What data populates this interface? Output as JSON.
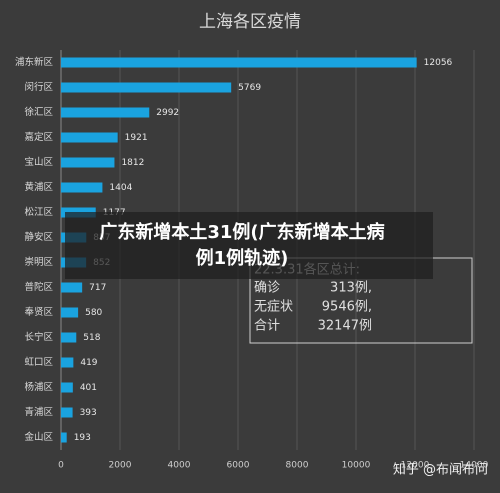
{
  "chart_data": {
    "type": "bar",
    "orientation": "horizontal",
    "title": "上海各区疫情",
    "categories": [
      "浦东新区",
      "闵行区",
      "徐汇区",
      "嘉定区",
      "宝山区",
      "黄浦区",
      "松江区",
      "静安区",
      "崇明区",
      "普陀区",
      "奉贤区",
      "长宁区",
      "虹口区",
      "杨浦区",
      "青浦区",
      "金山区"
    ],
    "values": [
      12056,
      5769,
      2992,
      1921,
      1812,
      1404,
      1177,
      857,
      852,
      717,
      580,
      518,
      419,
      401,
      393,
      193
    ],
    "color": "#1aa3e0",
    "xlim": [
      0,
      14000
    ],
    "xticks": [
      0,
      2000,
      4000,
      6000,
      8000,
      10000,
      12000,
      14000
    ],
    "grid": true,
    "annotation": {
      "title": "22.3.31各区总计:",
      "rows": [
        {
          "label": "确诊",
          "value": "313例,"
        },
        {
          "label": "无症状",
          "value": "9546例,"
        },
        {
          "label": "合计",
          "value": "32147例"
        }
      ]
    }
  },
  "overlay": {
    "caption": [
      "广东新增本土31例(广东新增本土病",
      "例1例轨迹)"
    ]
  },
  "watermark": "知乎 @布闻布问"
}
